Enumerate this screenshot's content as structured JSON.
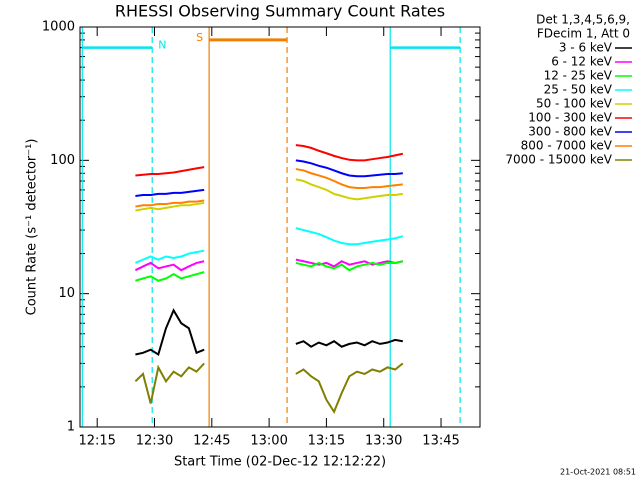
{
  "chart_data": {
    "type": "line",
    "title": "RHESSI Observing Summary Count Rates",
    "xlabel": "Start Time (02-Dec-12 12:12:22)",
    "ylabel": "Count Rate (s⁻¹ detector⁻¹)",
    "timestamp": "21-Oct-2021 08:51",
    "legend_header": [
      "Det 1,3,4,5,6,9,",
      "FDecim 1, Att 0"
    ],
    "yscale": "log",
    "ylim": [
      1,
      1000
    ],
    "yticks": [
      1,
      10,
      100,
      1000
    ],
    "yminorticks": [
      2,
      3,
      4,
      5,
      6,
      7,
      8,
      9,
      20,
      30,
      40,
      50,
      60,
      70,
      80,
      90,
      200,
      300,
      400,
      500,
      600,
      700,
      800,
      900
    ],
    "xlim": [
      730.5,
      835.2
    ],
    "xticks": [
      {
        "value": 735,
        "label": "12:15"
      },
      {
        "value": 750,
        "label": "12:30"
      },
      {
        "value": 765,
        "label": "12:45"
      },
      {
        "value": 780,
        "label": "13:00"
      },
      {
        "value": 795,
        "label": "13:15"
      },
      {
        "value": 810,
        "label": "13:30"
      },
      {
        "value": 825,
        "label": "13:45"
      }
    ],
    "x": [
      745,
      747,
      749,
      751,
      753,
      755,
      757,
      759,
      761,
      763,
      775,
      787,
      789,
      791,
      793,
      795,
      797,
      799,
      801,
      803,
      805,
      807,
      809,
      811,
      813,
      815
    ],
    "series": [
      {
        "name": "3 - 6 keV",
        "color": "#000000",
        "values": [
          3.5,
          3.6,
          3.8,
          3.5,
          5.5,
          7.5,
          6,
          5.5,
          3.6,
          3.8,
          null,
          4.2,
          4.4,
          4.0,
          4.3,
          4.1,
          4.4,
          4.0,
          4.2,
          4.3,
          4.1,
          4.4,
          4.2,
          4.3,
          4.5,
          4.4
        ]
      },
      {
        "name": "6 - 12 keV",
        "color": "#ff00ff",
        "values": [
          15,
          16,
          17,
          15.5,
          16,
          16.5,
          15,
          16,
          17,
          17.5,
          null,
          18,
          17.5,
          17,
          16.5,
          17,
          16,
          17.5,
          16.5,
          17,
          17.5,
          16.5,
          17,
          17.5,
          17,
          17.5
        ]
      },
      {
        "name": "12 - 25 keV",
        "color": "#00ff00",
        "values": [
          12.5,
          13,
          13.5,
          12.5,
          13,
          14,
          13,
          13.5,
          14,
          14.5,
          null,
          17,
          16.5,
          16,
          17,
          16,
          15.5,
          16.5,
          15,
          16,
          16.5,
          17,
          16.5,
          17,
          17,
          17.5
        ]
      },
      {
        "name": "25 - 50 keV",
        "color": "#00ffff",
        "values": [
          17,
          18,
          19,
          18,
          19,
          18.5,
          19,
          20,
          20.5,
          21,
          null,
          31,
          30,
          29,
          28,
          26.5,
          25,
          24,
          23.5,
          23.5,
          24,
          24.5,
          25,
          25.5,
          26,
          27
        ]
      },
      {
        "name": "50 - 100 keV",
        "color": "#d0d000",
        "values": [
          42,
          43,
          44,
          43,
          44,
          45,
          46,
          46,
          47,
          48,
          null,
          72,
          70,
          66,
          63,
          60,
          56,
          54,
          52,
          51,
          52,
          53,
          54,
          55,
          55,
          56
        ]
      },
      {
        "name": "100 - 300 keV",
        "color": "#ff0000",
        "values": [
          77,
          78,
          79,
          79,
          80,
          81,
          83,
          85,
          87,
          89,
          null,
          130,
          128,
          124,
          118,
          113,
          108,
          104,
          101,
          100,
          100,
          102,
          104,
          106,
          109,
          112
        ]
      },
      {
        "name": "300 - 800 keV",
        "color": "#0000ff",
        "values": [
          54,
          55,
          55,
          56,
          56,
          57,
          57,
          58,
          59,
          60,
          null,
          100,
          98,
          95,
          91,
          88,
          84,
          80,
          77,
          76,
          76,
          77,
          78,
          79,
          79,
          80
        ]
      },
      {
        "name": "800 - 7000 keV",
        "color": "#ff8000",
        "values": [
          45,
          46,
          46,
          47,
          47,
          48,
          48,
          49,
          49,
          50,
          null,
          86,
          84,
          80,
          77,
          74,
          70,
          66,
          63,
          62,
          62,
          63,
          63,
          64,
          65,
          66
        ]
      },
      {
        "name": "7000 - 15000 keV",
        "color": "#808000",
        "values": [
          2.2,
          2.5,
          1.5,
          2.8,
          2.2,
          2.6,
          2.4,
          2.8,
          2.6,
          3.0,
          null,
          2.5,
          2.7,
          2.4,
          2.2,
          1.6,
          1.3,
          1.8,
          2.4,
          2.6,
          2.5,
          2.7,
          2.6,
          2.8,
          2.7,
          3.0
        ]
      }
    ],
    "intervals": [
      {
        "label": "N",
        "color": "#00e5ee",
        "start": 731.1,
        "end": 749.4,
        "level": 700
      },
      {
        "label": "S",
        "color": "#f07f00",
        "start": 764.3,
        "end": 784.7,
        "level": 800
      },
      {
        "color": "#00e5ee",
        "start": 811.7,
        "end": 830.0,
        "level": 700
      }
    ]
  }
}
